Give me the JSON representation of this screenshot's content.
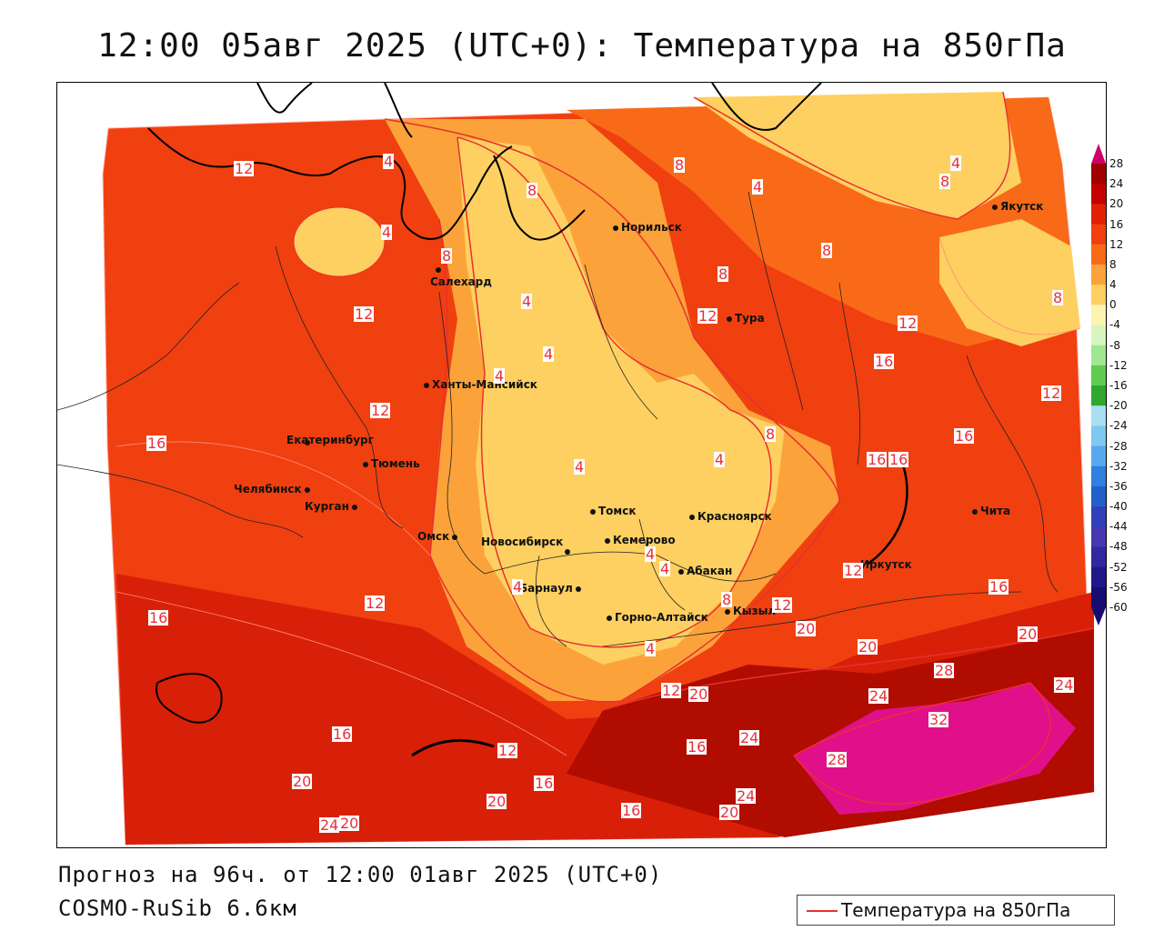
{
  "header": {
    "title": "12:00 05авг 2025 (UTC+0): Температура на 850гПа"
  },
  "footer": {
    "forecast": "Прогноз на 96ч. от 12:00 01авг 2025 (UTC+0)",
    "model": "COSMO-RuSib 6.6км"
  },
  "legend": {
    "label": "Температура на 850гПа",
    "line_color": "#e83030"
  },
  "colorbar": {
    "ticks": [
      "28",
      "24",
      "20",
      "16",
      "12",
      "8",
      "4",
      "0",
      "-4",
      "-8",
      "-12",
      "-16",
      "-20",
      "-24",
      "-28",
      "-32",
      "-36",
      "-40",
      "-44",
      "-48",
      "-52",
      "-56",
      "-60"
    ],
    "colors": [
      "#cc0066",
      "#a00000",
      "#c40000",
      "#e02000",
      "#f04010",
      "#f86a18",
      "#fba33a",
      "#fdd061",
      "#fdf4b0",
      "#d8f5c0",
      "#a0e890",
      "#60cc50",
      "#30a830",
      "#a8e0f0",
      "#80c8f0",
      "#58aaf0",
      "#3080e0",
      "#2060c8",
      "#3040b8",
      "#4838b0",
      "#3028a0",
      "#201888",
      "#180c70"
    ]
  },
  "cities": [
    {
      "name": "Норильск"
    },
    {
      "name": "Якутск"
    },
    {
      "name": "Салехард"
    },
    {
      "name": "Тура"
    },
    {
      "name": "Ханты-Мансийск"
    },
    {
      "name": "Екатеринбург"
    },
    {
      "name": "Тюмень"
    },
    {
      "name": "Челябинск"
    },
    {
      "name": "Курган"
    },
    {
      "name": "Омск"
    },
    {
      "name": "Томск"
    },
    {
      "name": "Красноярск"
    },
    {
      "name": "Новосибирск"
    },
    {
      "name": "Кемерово"
    },
    {
      "name": "Абакан"
    },
    {
      "name": "Барнаул"
    },
    {
      "name": "Горно-Алтайск"
    },
    {
      "name": "Кызыл"
    },
    {
      "name": "Иркутск"
    },
    {
      "name": "Чита"
    }
  ],
  "contour_labels": [
    "12",
    "4",
    "4",
    "8",
    "8",
    "4",
    "8",
    "4",
    "8",
    "8",
    "12",
    "12",
    "8",
    "8",
    "12",
    "16",
    "12",
    "4",
    "4",
    "4",
    "12",
    "4",
    "16",
    "16",
    "8",
    "4",
    "16",
    "16",
    "12",
    "4",
    "4",
    "4",
    "16",
    "12",
    "8",
    "12",
    "4",
    "16",
    "20",
    "20",
    "20",
    "28",
    "24",
    "24",
    "32",
    "16",
    "12",
    "20",
    "12",
    "16",
    "24",
    "28",
    "16",
    "20",
    "20",
    "16",
    "20",
    "24",
    "24",
    "20"
  ],
  "chart_data": {
    "type": "map",
    "variable": "Температура на 850гПа",
    "units": "°C",
    "colorbar_range": [
      -60,
      28
    ],
    "colorbar_step": 4,
    "contour_interval": 4
  }
}
